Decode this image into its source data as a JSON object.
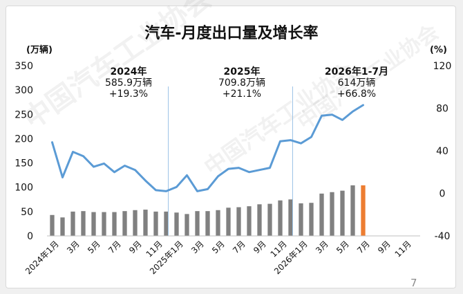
{
  "page": {
    "title": "汽车-月度出口量及增长率",
    "page_number": "7",
    "watermark": "中国汽车工业协会"
  },
  "colors": {
    "bar": "#808080",
    "bar_highlight": "#ed7d31",
    "line": "#5b9bd5",
    "divider": "#9dc3e6"
  },
  "chart_data": {
    "type": "bar+line",
    "left_axis_unit": "(万辆)",
    "right_axis_unit": "(%)",
    "ylim_left": [
      0,
      350
    ],
    "yticks_left": [
      "0",
      "50",
      "100",
      "150",
      "200",
      "250",
      "300",
      "350"
    ],
    "ylim_right": [
      -40,
      120
    ],
    "yticks_right": [
      "-40",
      "0",
      "40",
      "80",
      "120"
    ],
    "x_tick_labels": [
      "2024年1月",
      "3月",
      "5月",
      "7月",
      "9月",
      "11月",
      "2025年1月",
      "3月",
      "5月",
      "7月",
      "9月",
      "11月",
      "2026年1月",
      "3月",
      "5月",
      "7月",
      "9月",
      "11月"
    ],
    "num_slots": 36,
    "highlight_index": 30,
    "bars": [
      43,
      38,
      50,
      51,
      49,
      49,
      49,
      51,
      53,
      54,
      50,
      50,
      48,
      45,
      51,
      51,
      53,
      58,
      59,
      61,
      65,
      66,
      73,
      75,
      67,
      68,
      87,
      90,
      93,
      104,
      104
    ],
    "line": [
      48,
      15,
      39,
      35,
      25,
      28,
      20,
      26,
      22,
      12,
      3,
      2,
      6,
      17,
      2,
      4,
      16,
      23,
      24,
      20,
      22,
      24,
      49,
      50,
      47,
      53,
      73,
      74,
      69,
      77,
      83
    ],
    "annotations": [
      {
        "period": "2024年",
        "total": "585.9万辆",
        "growth": "+19.3%"
      },
      {
        "period": "2025年",
        "total": "709.8万辆",
        "growth": "+21.1%"
      },
      {
        "period": "2026年1-7月",
        "total": "614万辆",
        "growth": "+66.8%"
      }
    ]
  }
}
